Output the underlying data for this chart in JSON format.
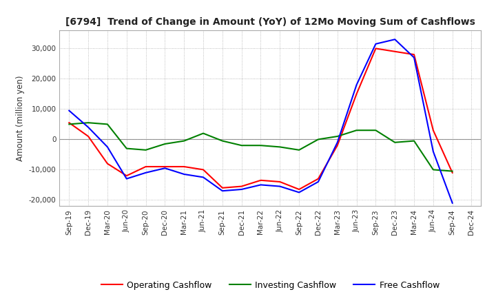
{
  "title": "[6794]  Trend of Change in Amount (YoY) of 12Mo Moving Sum of Cashflows",
  "ylabel": "Amount (million yen)",
  "ylim": [
    -22000,
    36000
  ],
  "yticks": [
    -20000,
    -10000,
    0,
    10000,
    20000,
    30000
  ],
  "x_labels": [
    "Sep-19",
    "Dec-19",
    "Mar-20",
    "Jun-20",
    "Sep-20",
    "Dec-20",
    "Mar-21",
    "Jun-21",
    "Sep-21",
    "Dec-21",
    "Mar-22",
    "Jun-22",
    "Sep-22",
    "Dec-22",
    "Mar-23",
    "Jun-23",
    "Sep-23",
    "Dec-23",
    "Mar-24",
    "Jun-24",
    "Sep-24",
    "Dec-24"
  ],
  "operating": [
    5500,
    1000,
    -8000,
    -12000,
    -9000,
    -9000,
    -9000,
    -10000,
    -16000,
    -15500,
    -13500,
    -14000,
    -16500,
    -13000,
    -2000,
    15000,
    30000,
    29000,
    28000,
    3000,
    -11000,
    null
  ],
  "investing": [
    5000,
    5500,
    5000,
    -3000,
    -3500,
    -1500,
    -500,
    2000,
    -500,
    -2000,
    -2000,
    -2500,
    -3500,
    0,
    1000,
    3000,
    3000,
    -1000,
    -500,
    -10000,
    -10500,
    null
  ],
  "free": [
    9500,
    4000,
    -2500,
    -13000,
    -11000,
    -9500,
    -11500,
    -12500,
    -17000,
    -16500,
    -15000,
    -15500,
    -17500,
    -14000,
    -1000,
    18000,
    31500,
    33000,
    27000,
    -4000,
    -21000,
    null
  ],
  "operating_color": "#ff0000",
  "investing_color": "#008000",
  "free_color": "#0000ff",
  "background_color": "#ffffff",
  "grid_color": "#aaaaaa",
  "zero_line_color": "#888888"
}
